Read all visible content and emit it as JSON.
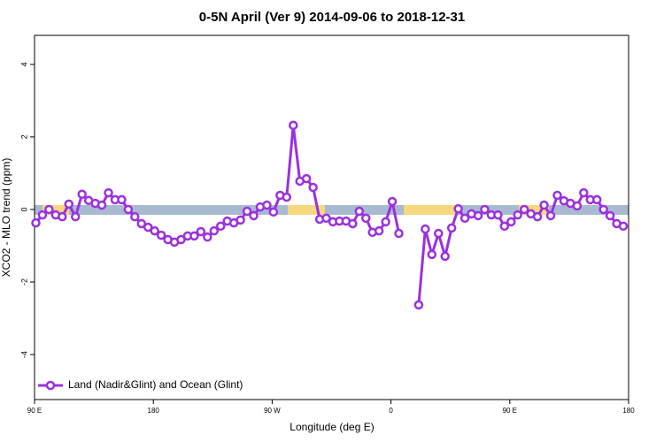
{
  "chart_data": {
    "type": "line",
    "title": "0-5N April (Ver 9)   2014-09-06 to 2018-12-31",
    "xlabel": "Longitude (deg E)",
    "ylabel": "XCO2 - MLO trend (ppm)",
    "x": [
      91,
      96,
      101,
      106,
      111,
      116,
      121,
      126,
      131,
      136,
      141,
      146,
      151,
      156,
      161,
      166,
      171,
      176,
      181,
      186,
      191,
      196,
      201,
      206,
      211,
      216,
      221,
      226,
      231,
      236,
      241,
      246,
      251,
      256,
      261,
      266,
      271,
      276,
      281,
      286,
      291,
      296,
      301,
      306,
      311,
      316,
      321,
      326,
      331,
      336,
      341,
      346,
      351,
      356,
      361,
      366,
      371,
      376,
      381,
      386,
      391,
      396,
      401,
      406,
      411,
      416,
      421,
      426,
      431,
      436,
      441,
      446,
      451,
      456,
      461,
      466,
      471,
      476,
      481,
      486,
      491,
      496,
      501,
      506,
      511,
      516,
      521,
      526,
      531,
      536
    ],
    "series": [
      {
        "name": "Land (Nadir&Glint) and Ocean (Glint)",
        "color": "#9b30e0",
        "values": [
          -0.37,
          -0.15,
          0,
          -0.15,
          -0.2,
          0.15,
          -0.2,
          0.42,
          0.25,
          0.17,
          0.12,
          0.46,
          0.27,
          0.27,
          0,
          -0.2,
          -0.39,
          -0.49,
          -0.59,
          -0.71,
          -0.83,
          -0.9,
          -0.83,
          -0.73,
          -0.73,
          -0.61,
          -0.76,
          -0.59,
          -0.46,
          -0.32,
          -0.37,
          -0.29,
          -0.05,
          -0.17,
          0.07,
          0.12,
          -0.07,
          0.39,
          0.34,
          2.32,
          0.78,
          0.85,
          0.61,
          -0.27,
          -0.24,
          -0.34,
          -0.32,
          -0.32,
          -0.39,
          -0.05,
          -0.24,
          -0.63,
          -0.59,
          -0.34,
          0.22,
          -0.66,
          null,
          null,
          -2.63,
          -0.54,
          -1.24,
          -0.66,
          -1.29,
          -0.51,
          0.02,
          -0.24,
          -0.12,
          -0.17,
          0,
          -0.15,
          -0.15,
          -0.46,
          -0.34,
          -0.15,
          0,
          -0.12,
          -0.2,
          0.12,
          -0.17,
          0.39,
          0.24,
          0.17,
          0.1,
          0.46,
          0.27,
          0.27,
          0,
          -0.17,
          -0.39,
          -0.46
        ]
      }
    ],
    "xlim": [
      90,
      540
    ],
    "xticks": [
      {
        "value": 90,
        "label": "90 E"
      },
      180,
      {
        "value": 270,
        "label": "90 W"
      },
      {
        "value": 360,
        "label": "0"
      },
      {
        "value": 450,
        "label": "90 E"
      },
      {
        "value": 540,
        "label": "180"
      }
    ],
    "ylim": [
      -5.24,
      4.8
    ],
    "yticks": [
      -4,
      -2,
      0,
      2,
      4
    ],
    "legend": "bottom-left"
  }
}
